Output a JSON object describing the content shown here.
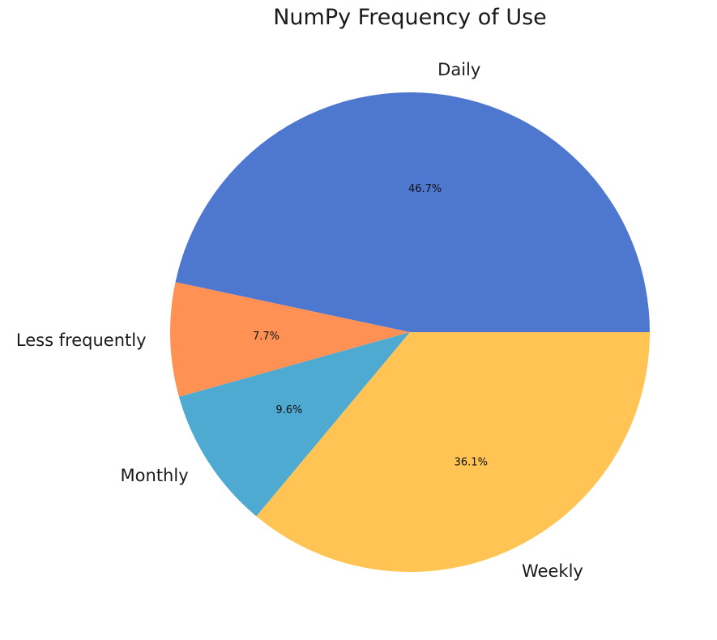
{
  "chart_data": {
    "type": "pie",
    "title": "NumPy Frequency of Use",
    "slices": [
      {
        "label": "Daily",
        "value": 46.7,
        "pct_label": "46.7%",
        "color": "#4e78cf"
      },
      {
        "label": "Less frequently",
        "value": 7.7,
        "pct_label": "7.7%",
        "color": "#ff9154"
      },
      {
        "label": "Monthly",
        "value": 9.6,
        "pct_label": "9.6%",
        "color": "#4eaad0"
      },
      {
        "label": "Weekly",
        "value": 36.1,
        "pct_label": "36.1%",
        "color": "#ffc453"
      }
    ],
    "start_angle_deg": 0,
    "direction": "counterclockwise",
    "legend": "none"
  }
}
